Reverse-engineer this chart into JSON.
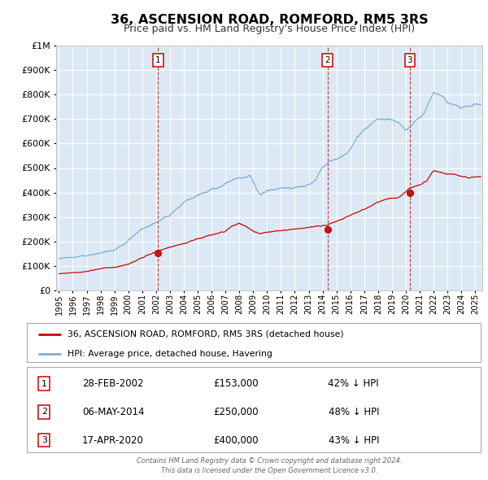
{
  "title": "36, ASCENSION ROAD, ROMFORD, RM5 3RS",
  "subtitle": "Price paid vs. HM Land Registry's House Price Index (HPI)",
  "background_color": "#ffffff",
  "plot_bg_color": "#dce9f5",
  "red_line_color": "#cc0000",
  "blue_line_color": "#7aaed6",
  "grid_color": "#ffffff",
  "sale_points": [
    {
      "date_num": 2002.15,
      "value": 153000,
      "label": "1"
    },
    {
      "date_num": 2014.35,
      "value": 250000,
      "label": "2"
    },
    {
      "date_num": 2020.29,
      "value": 400000,
      "label": "3"
    }
  ],
  "vline_dates": [
    2002.15,
    2014.35,
    2020.29
  ],
  "legend_entries": [
    "36, ASCENSION ROAD, ROMFORD, RM5 3RS (detached house)",
    "HPI: Average price, detached house, Havering"
  ],
  "table_data": [
    {
      "num": "1",
      "date": "28-FEB-2002",
      "price": "£153,000",
      "pct": "42% ↓ HPI"
    },
    {
      "num": "2",
      "date": "06-MAY-2014",
      "price": "£250,000",
      "pct": "48% ↓ HPI"
    },
    {
      "num": "3",
      "date": "17-APR-2020",
      "price": "£400,000",
      "pct": "43% ↓ HPI"
    }
  ],
  "footer": "Contains HM Land Registry data © Crown copyright and database right 2024.\nThis data is licensed under the Open Government Licence v3.0.",
  "ylim": [
    0,
    1000000
  ],
  "xlim": [
    1994.8,
    2025.5
  ],
  "yticks": [
    0,
    100000,
    200000,
    300000,
    400000,
    500000,
    600000,
    700000,
    800000,
    900000,
    1000000
  ],
  "xticks": [
    1995,
    1996,
    1997,
    1998,
    1999,
    2000,
    2001,
    2002,
    2003,
    2004,
    2005,
    2006,
    2007,
    2008,
    2009,
    2010,
    2011,
    2012,
    2013,
    2014,
    2015,
    2016,
    2017,
    2018,
    2019,
    2020,
    2021,
    2022,
    2023,
    2024,
    2025
  ]
}
